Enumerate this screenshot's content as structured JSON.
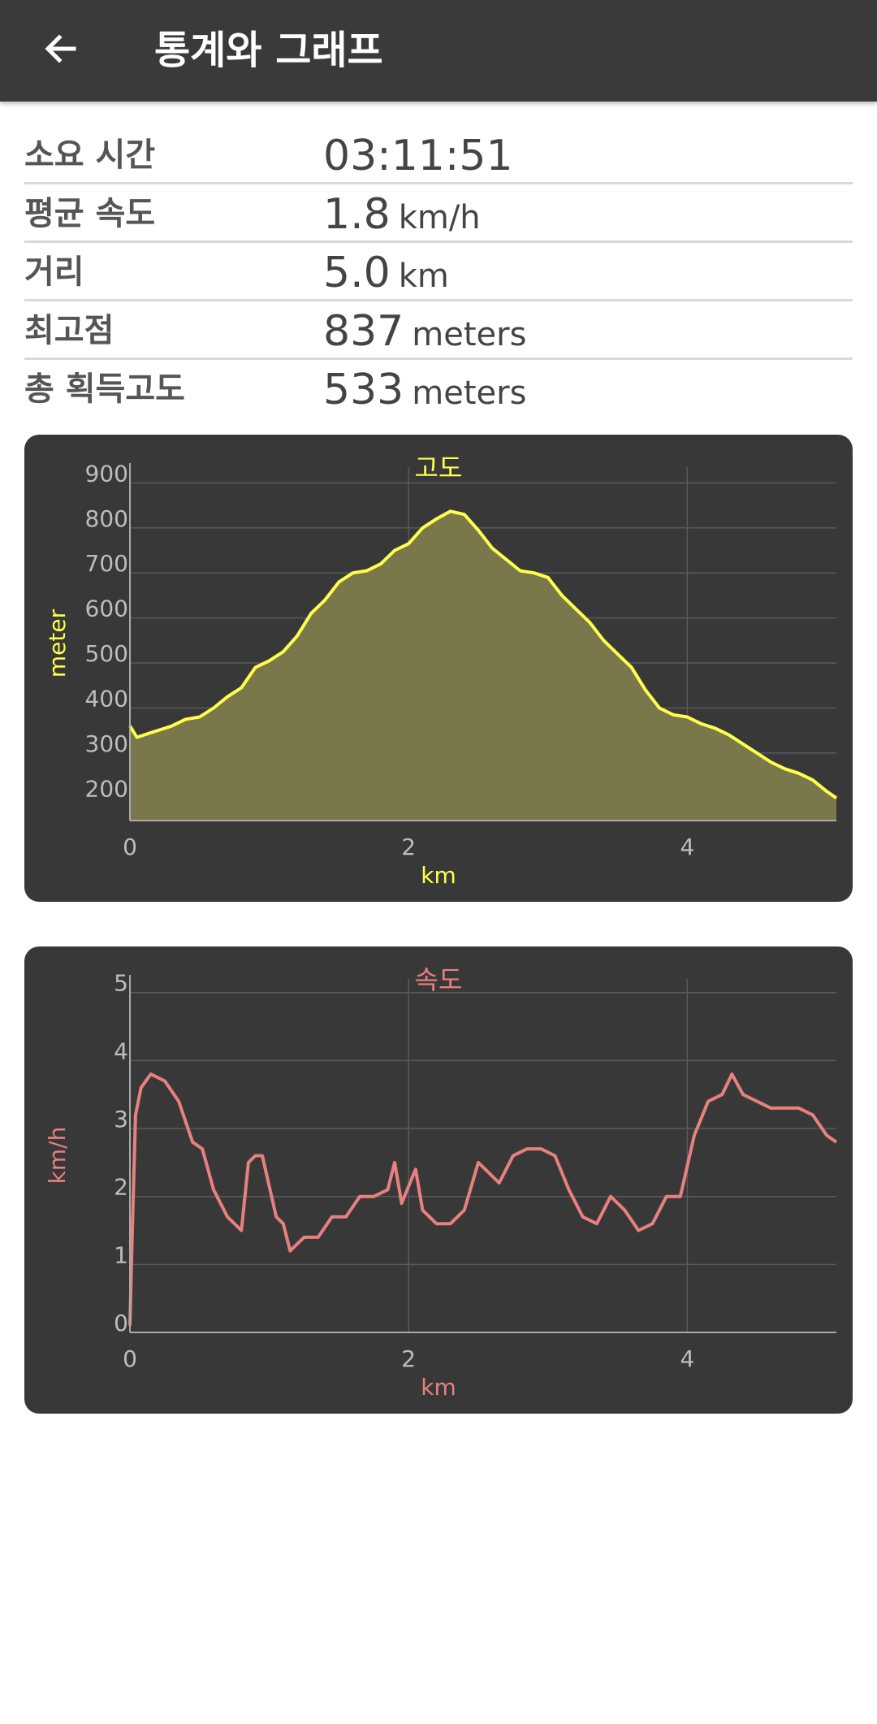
{
  "header": {
    "title": "통계와 그래프",
    "back_icon": "arrow-left-icon"
  },
  "stats": [
    {
      "label": "소요 시간",
      "value": "03:11:51",
      "unit": ""
    },
    {
      "label": "평균 속도",
      "value": "1.8",
      "unit": "km/h"
    },
    {
      "label": "거리",
      "value": "5.0",
      "unit": "km"
    },
    {
      "label": "최고점",
      "value": "837",
      "unit": "meters"
    },
    {
      "label": "총 획득고도",
      "value": "533",
      "unit": "meters"
    }
  ],
  "chart_data": [
    {
      "type": "area",
      "title": "고도",
      "xlabel": "km",
      "ylabel": "meter",
      "xlim": [
        0,
        5.07
      ],
      "ylim": [
        150,
        935
      ],
      "xticks": [
        0,
        2,
        4
      ],
      "yticks": [
        200,
        300,
        400,
        500,
        600,
        700,
        800,
        900
      ],
      "grid": true,
      "color": "#ffff4d",
      "fill": "#7a774a",
      "x": [
        0,
        0.05,
        0.15,
        0.3,
        0.4,
        0.5,
        0.6,
        0.7,
        0.8,
        0.9,
        1.0,
        1.1,
        1.2,
        1.3,
        1.4,
        1.5,
        1.6,
        1.7,
        1.8,
        1.9,
        2.0,
        2.1,
        2.2,
        2.3,
        2.4,
        2.5,
        2.6,
        2.7,
        2.8,
        2.9,
        3.0,
        3.1,
        3.2,
        3.3,
        3.4,
        3.5,
        3.6,
        3.7,
        3.8,
        3.9,
        4.0,
        4.1,
        4.2,
        4.3,
        4.4,
        4.5,
        4.6,
        4.7,
        4.8,
        4.9,
        5.0,
        5.07
      ],
      "y": [
        360,
        335,
        345,
        360,
        375,
        380,
        400,
        425,
        445,
        490,
        505,
        525,
        560,
        610,
        640,
        680,
        700,
        705,
        720,
        750,
        765,
        800,
        820,
        837,
        830,
        795,
        755,
        730,
        705,
        700,
        690,
        650,
        620,
        590,
        550,
        520,
        490,
        440,
        400,
        385,
        380,
        365,
        355,
        340,
        320,
        300,
        280,
        265,
        255,
        240,
        215,
        200
      ]
    },
    {
      "type": "line",
      "title": "속도",
      "xlabel": "km",
      "ylabel": "km/h",
      "xlim": [
        0,
        5.07
      ],
      "ylim": [
        0,
        5.2
      ],
      "xticks": [
        0,
        2,
        4
      ],
      "yticks": [
        0,
        1,
        2,
        3,
        4,
        5
      ],
      "grid": true,
      "color": "#e88080",
      "x": [
        0,
        0.02,
        0.04,
        0.08,
        0.15,
        0.25,
        0.35,
        0.45,
        0.52,
        0.6,
        0.7,
        0.8,
        0.85,
        0.9,
        0.95,
        1.05,
        1.1,
        1.15,
        1.25,
        1.35,
        1.45,
        1.55,
        1.65,
        1.75,
        1.85,
        1.9,
        1.95,
        2.05,
        2.1,
        2.2,
        2.3,
        2.4,
        2.5,
        2.55,
        2.65,
        2.75,
        2.85,
        2.95,
        3.05,
        3.15,
        3.25,
        3.35,
        3.45,
        3.55,
        3.65,
        3.75,
        3.85,
        3.95,
        4.05,
        4.15,
        4.25,
        4.32,
        4.4,
        4.5,
        4.6,
        4.7,
        4.8,
        4.9,
        5.0,
        5.07
      ],
      "y": [
        0.1,
        1.7,
        3.2,
        3.6,
        3.8,
        3.7,
        3.4,
        2.8,
        2.7,
        2.1,
        1.7,
        1.5,
        2.5,
        2.6,
        2.6,
        1.7,
        1.6,
        1.2,
        1.4,
        1.4,
        1.7,
        1.7,
        2.0,
        2.0,
        2.1,
        2.5,
        1.9,
        2.4,
        1.8,
        1.6,
        1.6,
        1.8,
        2.5,
        2.4,
        2.2,
        2.6,
        2.7,
        2.7,
        2.6,
        2.1,
        1.7,
        1.6,
        2.0,
        1.8,
        1.5,
        1.6,
        2.0,
        2.0,
        2.9,
        3.4,
        3.5,
        3.8,
        3.5,
        3.4,
        3.3,
        3.3,
        3.3,
        3.2,
        2.9,
        2.8
      ]
    }
  ]
}
